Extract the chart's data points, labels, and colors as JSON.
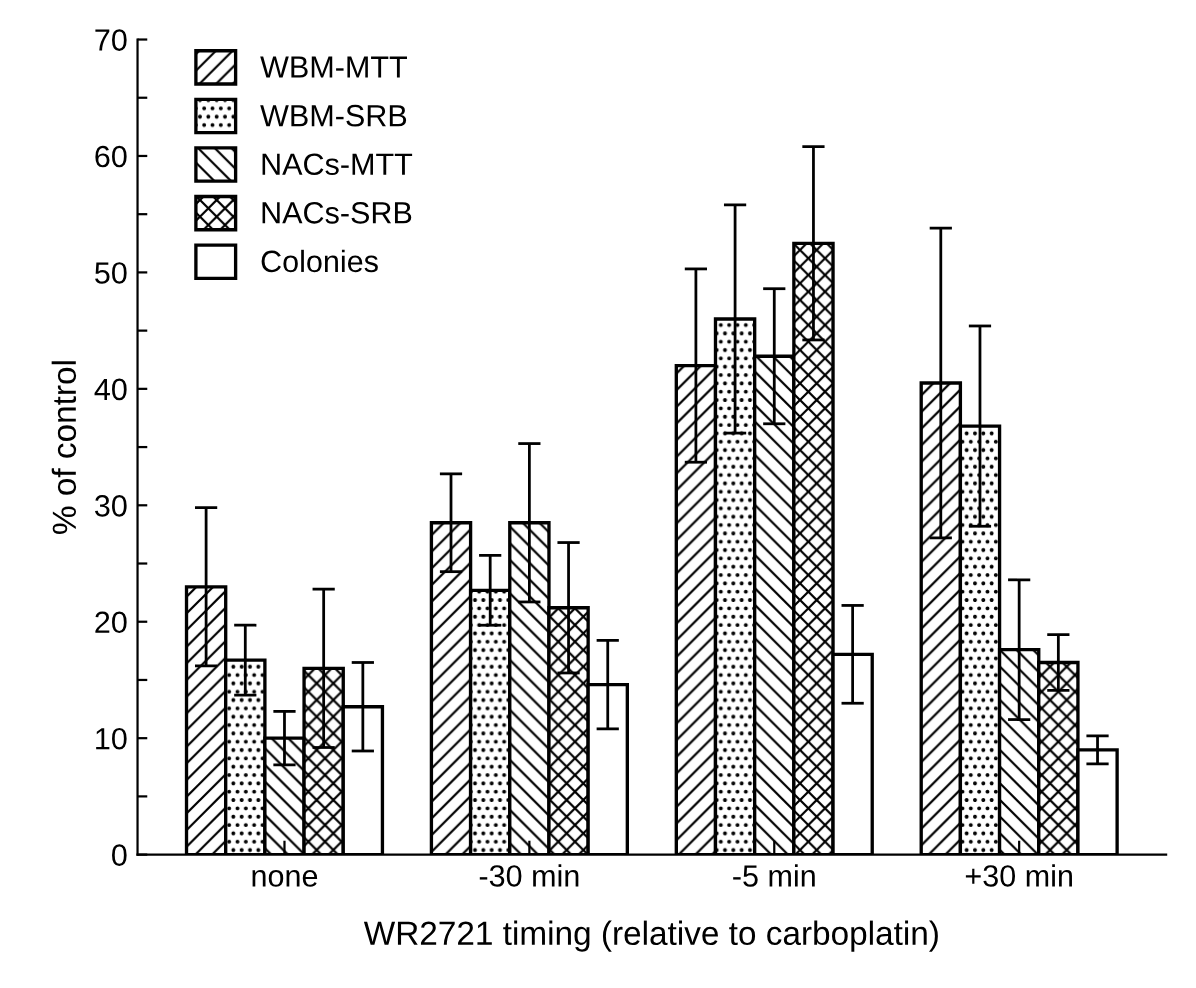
{
  "chart_data": {
    "type": "bar",
    "xlabel": "WR2721 timing (relative to carboplatin)",
    "ylabel": "% of control",
    "categories": [
      "none",
      "-30 min",
      "-5 min",
      "+30 min"
    ],
    "series": [
      {
        "name": "WBM-MTT",
        "color": "#000000",
        "values": [
          23,
          28.5,
          42,
          40.5
        ],
        "errors": [
          6.8,
          4.2,
          8.3,
          13.3
        ]
      },
      {
        "name": "WBM-SRB",
        "color": "#000000",
        "values": [
          16.7,
          22.7,
          46,
          36.8
        ],
        "errors": [
          3,
          3,
          9.8,
          8.6
        ]
      },
      {
        "name": "NACs-MTT",
        "color": "#000000",
        "values": [
          10,
          28.5,
          42.8,
          17.6
        ],
        "errors": [
          2.3,
          6.8,
          5.8,
          6
        ]
      },
      {
        "name": "NACs-SRB",
        "color": "#000000",
        "values": [
          16,
          21.2,
          52.5,
          16.5
        ],
        "errors": [
          6.8,
          5.6,
          8.3,
          2.4
        ]
      },
      {
        "name": "Colonies",
        "color": "#ffffff",
        "values": [
          12.7,
          14.6,
          17.2,
          9
        ],
        "errors": [
          3.8,
          3.8,
          4.2,
          1.2
        ]
      }
    ],
    "ylim": [
      0,
      70
    ],
    "yticks": [
      0,
      {
        "value": 5,
        "label": null
      },
      10,
      {
        "value": 15,
        "label": null
      },
      20,
      {
        "value": 25,
        "label": null
      },
      30,
      {
        "value": 35,
        "label": null
      },
      40,
      {
        "value": 45,
        "label": null
      },
      50,
      {
        "value": 55,
        "label": null
      },
      60,
      {
        "value": 65,
        "label": null
      },
      70
    ],
    "legend": "top left",
    "grid": false
  }
}
